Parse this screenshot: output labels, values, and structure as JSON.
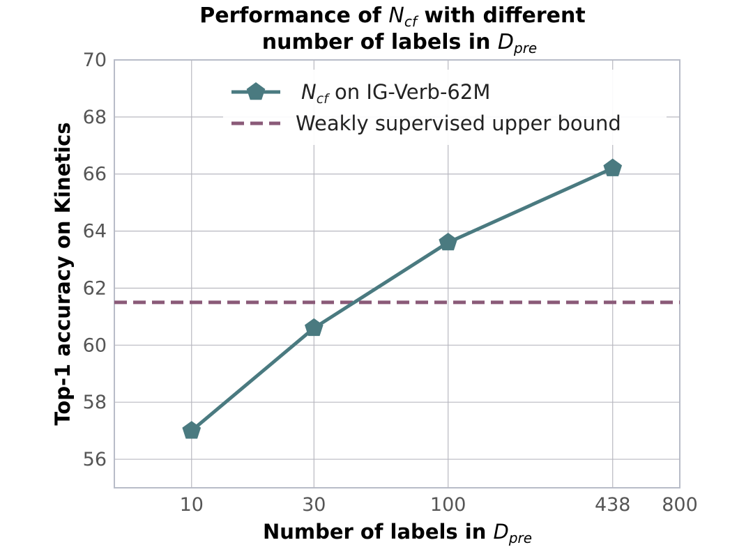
{
  "chart_data": {
    "type": "line",
    "title_line1_prefix": "Performance of ",
    "title_line1_symbol": "N",
    "title_line1_symbol_sub": "cf",
    "title_line1_suffix": " with different",
    "title_line2_prefix": "number of labels in ",
    "title_line2_symbol": "D",
    "title_line2_symbol_sub": "pre",
    "xlabel_prefix": "Number of labels in ",
    "xlabel_symbol": "D",
    "xlabel_symbol_sub": "pre",
    "ylabel": "Top-1 accuracy on Kinetics",
    "x_scale": "log",
    "x_ticks": [
      10,
      30,
      100,
      438,
      800
    ],
    "x_tick_labels": [
      "10",
      "30",
      "100",
      "438",
      "800"
    ],
    "xlim": [
      5,
      800
    ],
    "ylim": [
      55,
      70
    ],
    "y_ticks": [
      56,
      58,
      60,
      62,
      64,
      66,
      68,
      70
    ],
    "y_tick_labels": [
      "56",
      "58",
      "60",
      "62",
      "64",
      "66",
      "68",
      "70"
    ],
    "grid": true,
    "legend_position": "top",
    "series": [
      {
        "symbol": "N",
        "symbol_sub": "cf",
        "name_suffix": " on IG-Verb-62M",
        "x": [
          10,
          30,
          100,
          438
        ],
        "y": [
          57.0,
          60.6,
          63.6,
          66.2
        ],
        "color": "#4a7a80",
        "marker": "pentagon"
      },
      {
        "name": "Weakly supervised upper bound",
        "type": "hline",
        "y": 61.5,
        "color": "#8a5a78",
        "linestyle": "dashed"
      }
    ]
  }
}
